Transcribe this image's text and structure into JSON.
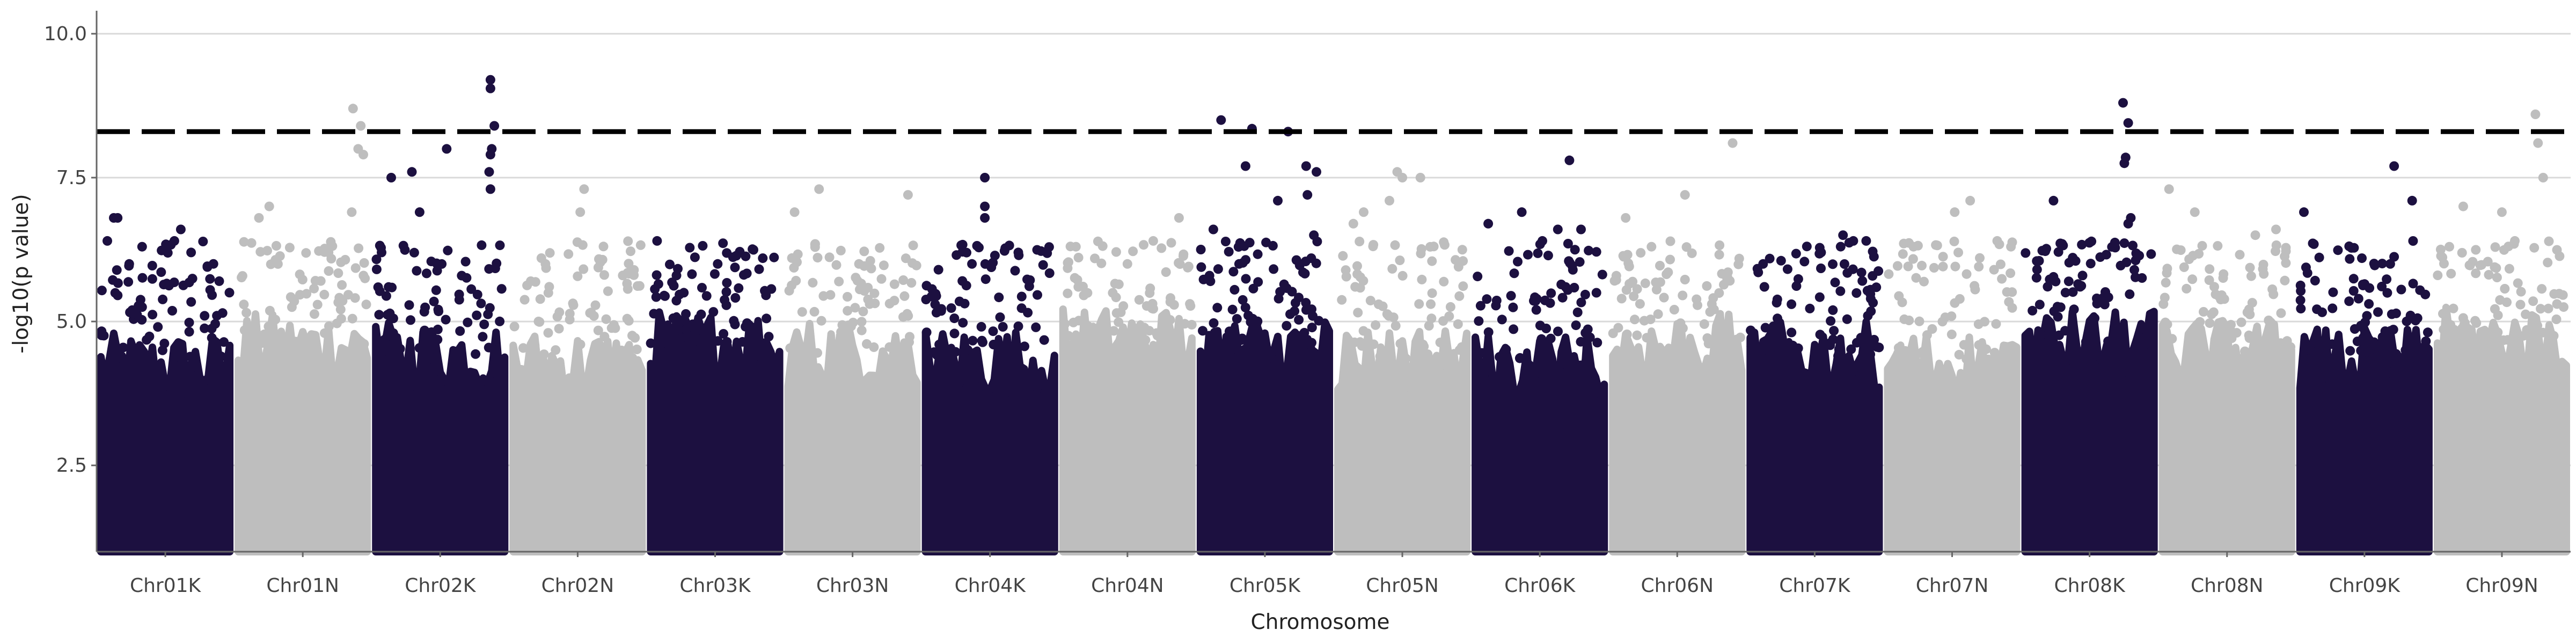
{
  "chart_data": {
    "type": "scatter",
    "subtype": "manhattan",
    "title": "",
    "xlabel": "Chromosome",
    "ylabel": "-log10(p value)",
    "ylim": [
      1.0,
      10.4
    ],
    "yticks": [
      2.5,
      5.0,
      7.5,
      10.0
    ],
    "grid": "horizontal",
    "legend": "none",
    "significance_threshold": 8.3,
    "colors": {
      "odd": "#1c1040",
      "even": "#bebebe",
      "threshold": "#000000",
      "grid": "#d9d9d9",
      "axis": "#666666"
    },
    "categories": [
      "Chr01K",
      "Chr01N",
      "Chr02K",
      "Chr02N",
      "Chr03K",
      "Chr03N",
      "Chr04K",
      "Chr04N",
      "Chr05K",
      "Chr05N",
      "Chr06K",
      "Chr06N",
      "Chr07K",
      "Chr07N",
      "Chr08K",
      "Chr08N",
      "Chr09K",
      "Chr09N"
    ],
    "series": [
      {
        "category": "Chr01K",
        "max": 6.8,
        "points": [
          [
            0.1,
            6.8
          ],
          [
            0.13,
            6.8
          ],
          [
            0.05,
            6.4
          ],
          [
            0.57,
            6.4
          ],
          [
            0.62,
            6.6
          ],
          [
            0.32,
            6.3
          ],
          [
            0.7,
            6.2
          ],
          [
            0.22,
            6.0
          ],
          [
            0.9,
            5.1
          ]
        ]
      },
      {
        "category": "Chr01N",
        "max": 8.7,
        "points": [
          [
            0.89,
            8.7
          ],
          [
            0.95,
            8.4
          ],
          [
            0.93,
            8.0
          ],
          [
            0.97,
            7.9
          ],
          [
            0.16,
            6.8
          ],
          [
            0.24,
            7.0
          ],
          [
            0.7,
            6.2
          ],
          [
            0.88,
            6.9
          ]
        ]
      },
      {
        "category": "Chr02K",
        "max": 9.2,
        "points": [
          [
            0.89,
            9.2
          ],
          [
            0.89,
            9.05
          ],
          [
            0.92,
            8.4
          ],
          [
            0.9,
            8.0
          ],
          [
            0.89,
            7.9
          ],
          [
            0.55,
            8.0
          ],
          [
            0.28,
            7.6
          ],
          [
            0.12,
            7.5
          ],
          [
            0.34,
            6.9
          ],
          [
            0.88,
            7.6
          ],
          [
            0.89,
            7.3
          ]
        ]
      },
      {
        "category": "Chr02N",
        "max": 7.3,
        "points": [
          [
            0.55,
            7.3
          ],
          [
            0.52,
            6.9
          ],
          [
            0.85,
            5.8
          ],
          [
            0.25,
            6.0
          ]
        ]
      },
      {
        "category": "Chr03K",
        "max": 6.4,
        "points": [
          [
            0.05,
            6.4
          ],
          [
            0.52,
            6.0
          ],
          [
            0.87,
            6.1
          ],
          [
            0.2,
            5.8
          ]
        ]
      },
      {
        "category": "Chr03N",
        "max": 7.3,
        "points": [
          [
            0.05,
            6.9
          ],
          [
            0.24,
            7.3
          ],
          [
            0.93,
            7.2
          ],
          [
            0.55,
            6.0
          ]
        ]
      },
      {
        "category": "Chr04K",
        "max": 7.5,
        "points": [
          [
            0.46,
            7.5
          ],
          [
            0.46,
            7.0
          ],
          [
            0.46,
            6.8
          ],
          [
            0.72,
            6.2
          ],
          [
            0.36,
            6.0
          ],
          [
            0.1,
            5.9
          ]
        ]
      },
      {
        "category": "Chr04N",
        "max": 6.8,
        "points": [
          [
            0.1,
            6.3
          ],
          [
            0.9,
            6.8
          ],
          [
            0.7,
            6.4
          ],
          [
            0.5,
            6.0
          ]
        ]
      },
      {
        "category": "Chr05K",
        "max": 8.5,
        "points": [
          [
            0.16,
            8.5
          ],
          [
            0.4,
            8.35
          ],
          [
            0.68,
            8.3
          ],
          [
            0.35,
            7.7
          ],
          [
            0.82,
            7.7
          ],
          [
            0.9,
            7.6
          ],
          [
            0.83,
            7.2
          ],
          [
            0.6,
            7.1
          ],
          [
            0.1,
            6.6
          ],
          [
            0.88,
            6.5
          ],
          [
            0.86,
            6.1
          ]
        ]
      },
      {
        "category": "Chr05N",
        "max": 7.6,
        "points": [
          [
            0.46,
            7.6
          ],
          [
            0.5,
            7.5
          ],
          [
            0.64,
            7.5
          ],
          [
            0.4,
            7.1
          ],
          [
            0.12,
            6.7
          ],
          [
            0.2,
            6.9
          ]
        ]
      },
      {
        "category": "Chr06K",
        "max": 7.8,
        "points": [
          [
            0.73,
            7.8
          ],
          [
            0.1,
            6.7
          ],
          [
            0.36,
            6.9
          ],
          [
            0.64,
            6.6
          ],
          [
            0.52,
            6.4
          ],
          [
            0.82,
            6.6
          ]
        ]
      },
      {
        "category": "Chr06N",
        "max": 8.1,
        "points": [
          [
            0.93,
            8.1
          ],
          [
            0.1,
            6.8
          ],
          [
            0.56,
            7.2
          ],
          [
            0.3,
            6.3
          ]
        ]
      },
      {
        "category": "Chr07K",
        "max": 6.5,
        "points": [
          [
            0.72,
            6.5
          ],
          [
            0.8,
            6.4
          ],
          [
            0.9,
            6.4
          ],
          [
            0.55,
            6.2
          ],
          [
            0.1,
            6.0
          ]
        ]
      },
      {
        "category": "Chr07N",
        "max": 7.1,
        "points": [
          [
            0.64,
            7.1
          ],
          [
            0.52,
            6.9
          ],
          [
            0.2,
            6.3
          ],
          [
            0.85,
            6.4
          ]
        ]
      },
      {
        "category": "Chr08K",
        "max": 8.8,
        "points": [
          [
            0.76,
            8.8
          ],
          [
            0.8,
            8.45
          ],
          [
            0.78,
            7.85
          ],
          [
            0.77,
            7.75
          ],
          [
            0.22,
            7.1
          ],
          [
            0.82,
            6.8
          ],
          [
            0.8,
            6.7
          ]
        ]
      },
      {
        "category": "Chr08N",
        "max": 7.3,
        "points": [
          [
            0.05,
            7.3
          ],
          [
            0.25,
            6.9
          ],
          [
            0.72,
            6.5
          ],
          [
            0.88,
            6.6
          ]
        ]
      },
      {
        "category": "Chr09K",
        "max": 7.7,
        "points": [
          [
            0.73,
            7.7
          ],
          [
            0.87,
            7.1
          ],
          [
            0.03,
            6.9
          ],
          [
            0.48,
            6.1
          ],
          [
            0.7,
            6.0
          ]
        ]
      },
      {
        "category": "Chr09N",
        "max": 8.6,
        "points": [
          [
            0.76,
            8.6
          ],
          [
            0.78,
            8.1
          ],
          [
            0.82,
            7.5
          ],
          [
            0.2,
            7.0
          ],
          [
            0.5,
            6.9
          ],
          [
            0.6,
            6.4
          ]
        ]
      }
    ]
  }
}
